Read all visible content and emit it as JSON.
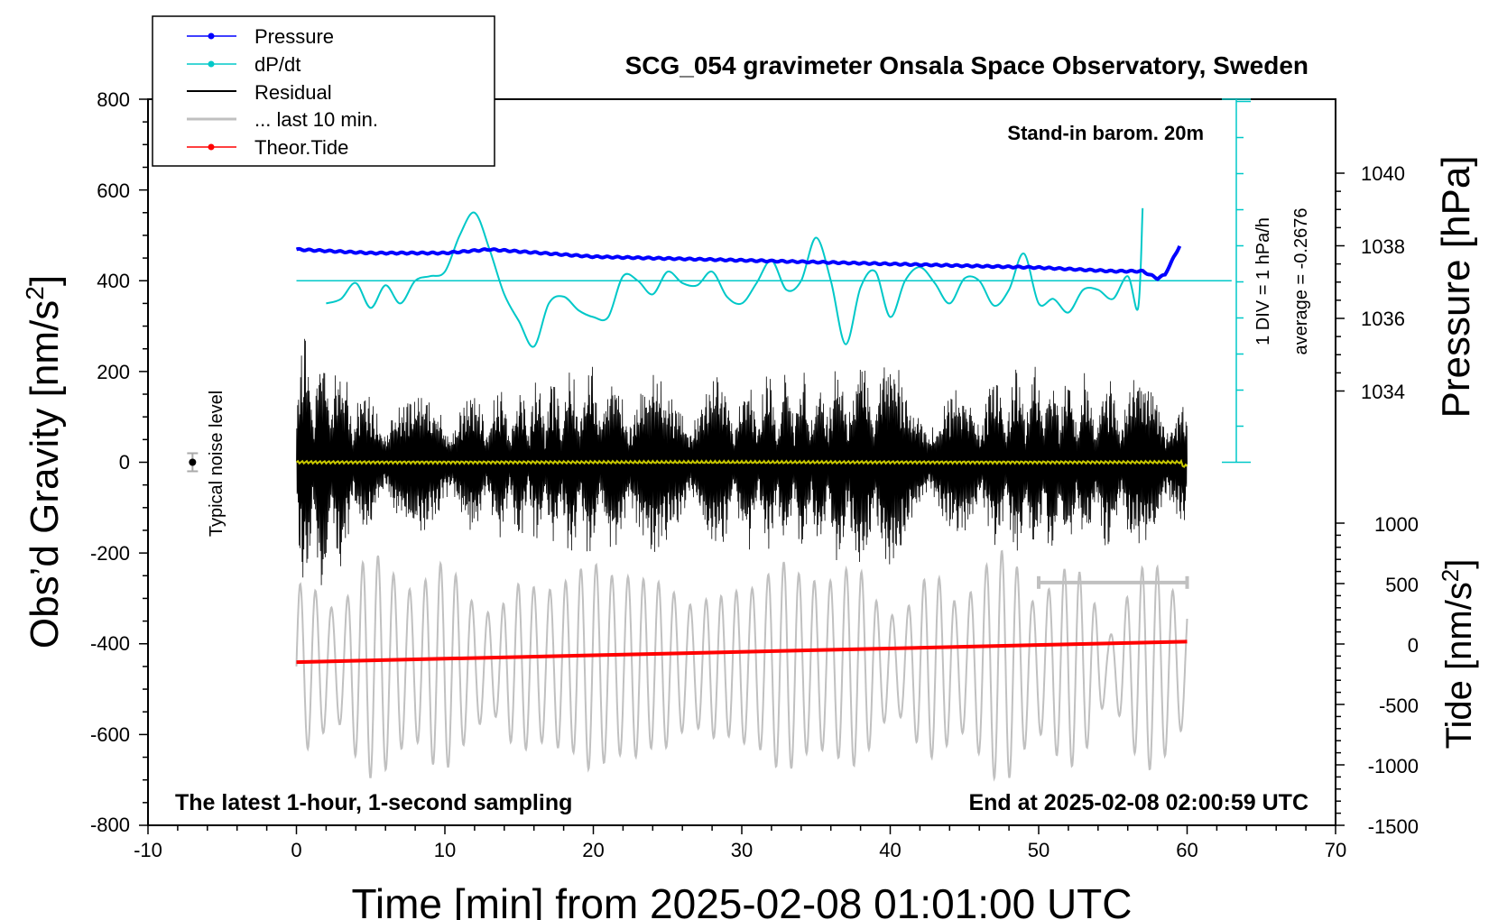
{
  "chart_data": {
    "type": "line",
    "title": "SCG_054 gravimeter Onsala Space Observatory, Sweden",
    "xlabel": "Time [min] from 2025-02-08 01:01:00 UTC",
    "ylabel_left": "Obs’d Gravity [nm/s",
    "ylabel_left_sup": "2",
    "ylabel_left_end": "]",
    "ylabel_right_pressure": "Pressure [hPa]",
    "ylabel_right_tide": "Tide [nm/s",
    "ylabel_right_tide_sup": "2",
    "ylabel_right_tide_end": "]",
    "xlim": [
      -10,
      70
    ],
    "ylim_gravity": [
      -800,
      800
    ],
    "ylim_pressure_ticks": [
      1034,
      1036,
      1038,
      1040
    ],
    "ylim_tide_ticks": [
      -1500,
      -1000,
      -500,
      0,
      500,
      1000
    ],
    "x_ticks": [
      "-10",
      "0",
      "10",
      "20",
      "30",
      "40",
      "50",
      "60",
      "70"
    ],
    "y_ticks_left": [
      "800",
      "600",
      "400",
      "200",
      "0",
      "-200",
      "-400",
      "-600",
      "-800"
    ],
    "y_ticks_pressure": [
      "1040",
      "1038",
      "1036",
      "1034"
    ],
    "y_ticks_tide": [
      "1000",
      "500",
      "0",
      "-500",
      "-1000",
      "-1500"
    ],
    "legend": [
      {
        "label": "Pressure",
        "color": "#0000ff",
        "marker": true
      },
      {
        "label": "dP/dt",
        "color": "#00c8c8",
        "marker": true
      },
      {
        "label": "Residual",
        "color": "#000000",
        "marker": false
      },
      {
        "label": "... last 10 min.",
        "color": "#c0c0c0",
        "marker": false
      },
      {
        "label": "Theor.Tide",
        "color": "#ff0000",
        "marker": true
      }
    ],
    "annotations": {
      "barometer": "Stand-in barom. 20m",
      "dpdt_scale": "1 DIV = 1 hPa/h",
      "dpdt_average": "average = -0.2676",
      "noise": "Typical noise level",
      "bottom_left": "The latest 1-hour, 1-second sampling",
      "bottom_right": "End at 2025-02-08 02:00:59 UTC"
    },
    "series": [
      {
        "name": "Pressure",
        "unit": "hPa",
        "x": [
          0,
          5,
          10,
          13,
          20,
          30,
          40,
          50,
          55,
          57,
          58,
          58.5,
          59.5
        ],
        "values": [
          1037.9,
          1037.8,
          1037.8,
          1037.9,
          1037.7,
          1037.6,
          1037.5,
          1037.4,
          1037.3,
          1037.3,
          1037.1,
          1037.2,
          1038.0
        ]
      },
      {
        "name": "dP/dt",
        "unit": "nm/s2 plot position",
        "x": [
          2,
          3,
          4,
          5,
          6,
          7,
          8,
          9,
          10,
          11,
          12,
          13,
          14,
          15,
          16,
          17,
          18,
          19,
          20,
          21,
          22,
          23,
          24,
          25,
          26,
          27,
          28,
          29,
          30,
          31,
          32,
          33,
          34,
          35,
          36,
          37,
          38,
          39,
          40,
          41,
          42,
          43,
          44,
          45,
          46,
          47,
          48,
          49,
          50,
          51,
          52,
          53,
          54,
          55,
          56,
          56.7,
          57
        ],
        "values": [
          350,
          360,
          395,
          340,
          390,
          350,
          400,
          410,
          420,
          500,
          550,
          470,
          370,
          310,
          255,
          350,
          365,
          335,
          320,
          320,
          410,
          400,
          370,
          420,
          395,
          390,
          420,
          365,
          350,
          395,
          445,
          380,
          400,
          495,
          400,
          260,
          385,
          420,
          320,
          400,
          430,
          395,
          350,
          405,
          400,
          345,
          380,
          460,
          350,
          360,
          330,
          380,
          380,
          360,
          410,
          340,
          560
        ]
      },
      {
        "name": "Residual",
        "unit": "nm/s2",
        "envelope_x": [
          0,
          2,
          5,
          8,
          12,
          15,
          20,
          22,
          25,
          30,
          35,
          40,
          41,
          45,
          50,
          55,
          58,
          60
        ],
        "envelope_max": [
          300,
          300,
          150,
          170,
          160,
          180,
          230,
          210,
          200,
          200,
          210,
          300,
          180,
          170,
          230,
          190,
          240,
          160
        ]
      },
      {
        "name": "Theor.Tide",
        "unit": "nm/s2",
        "x": [
          0,
          60
        ],
        "values": [
          -150,
          20
        ]
      }
    ],
    "last_10_min_range": [
      50,
      60
    ]
  }
}
